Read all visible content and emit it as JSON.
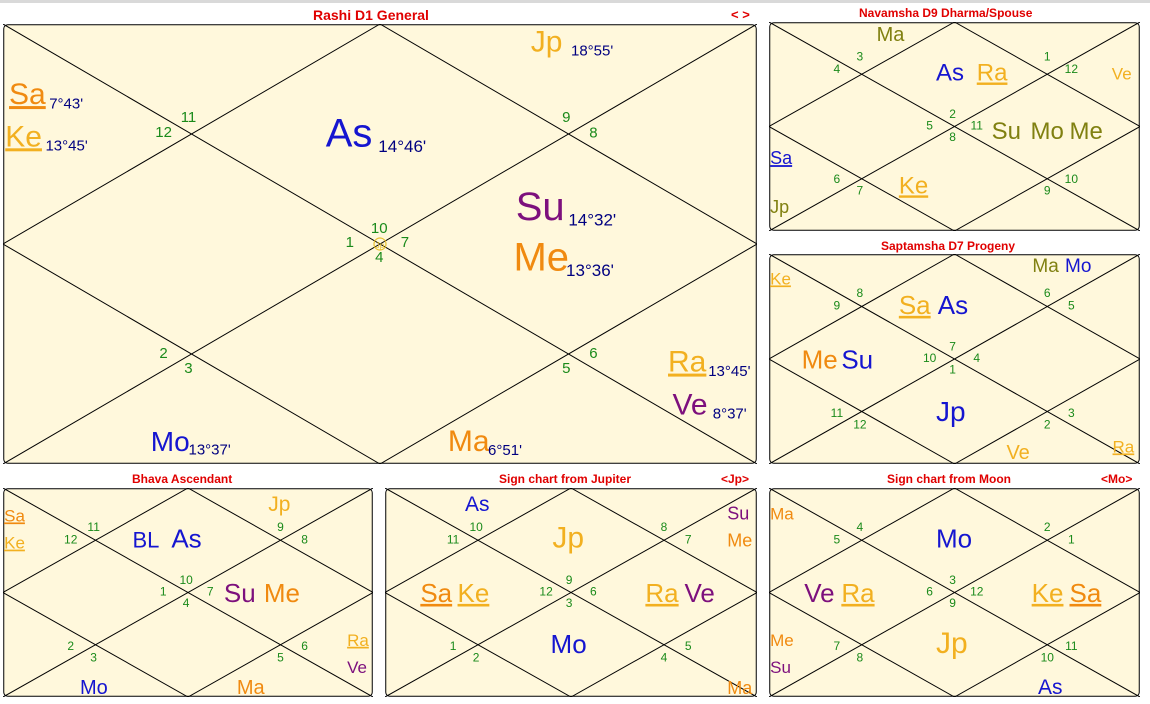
{
  "colors": {
    "background": "#fff8dc",
    "border": "#000000",
    "title": "#e00000",
    "house_number": "#1a8a1a",
    "degree": "#000080",
    "planets": {
      "As": "#1515d0",
      "Su": "#7d107d",
      "Mo": "#1515d0",
      "Ma": "#f08a10",
      "Me": "#f08a10",
      "Jp": "#f2b020",
      "Ve": "#7d107d",
      "Sa": "#f08a10",
      "Ra": "#f2b020",
      "Ke": "#f2b020",
      "BL": "#1515d0",
      "MaN": "#808010",
      "SuN": "#808010",
      "MoN": "#808010",
      "MeN": "#808010",
      "SaB": "#1515d0",
      "JpN": "#808010",
      "KeD": "#f2b020",
      "SaD": "#f2b020",
      "RaD": "#f2b020",
      "VeD": "#f2b020",
      "MeD": "#f08a10",
      "SuD": "#1515d0",
      "MaD": "#808010",
      "MoD": "#1515d0",
      "JpD": "#1515d0",
      "AsD": "#1515d0"
    }
  },
  "charts": [
    {
      "id": "rashi",
      "title": "Rashi D1 General",
      "nav": "< >",
      "houses": [
        {
          "n": "11"
        },
        {
          "n": "12"
        },
        {
          "n": "9"
        },
        {
          "n": "8"
        },
        {
          "n": "10"
        },
        {
          "n": "1"
        },
        {
          "n": "7"
        },
        {
          "n": "4"
        },
        {
          "n": "2"
        },
        {
          "n": "3"
        },
        {
          "n": "6"
        },
        {
          "n": "5"
        }
      ],
      "planets": [
        {
          "label": "Sa",
          "deg": "7°43'",
          "color": "Sa",
          "underline": true
        },
        {
          "label": "Ke",
          "deg": "13°45'",
          "color": "Ke",
          "underline": true
        },
        {
          "label": "As",
          "deg": "14°46'",
          "color": "As"
        },
        {
          "label": "Jp",
          "deg": "18°55'",
          "color": "Jp"
        },
        {
          "label": "Su",
          "deg": "14°32'",
          "color": "Su"
        },
        {
          "label": "Me",
          "deg": "13°36'",
          "color": "Me"
        },
        {
          "label": "Ra",
          "deg": "13°45'",
          "color": "Ra",
          "underline": true
        },
        {
          "label": "Ve",
          "deg": "8°37'",
          "color": "Ve"
        },
        {
          "label": "Mo",
          "deg": "13°37'",
          "color": "Mo"
        },
        {
          "label": "Ma",
          "deg": "6°51'",
          "color": "Ma"
        }
      ]
    },
    {
      "id": "navamsha",
      "title": "Navamsha D9 Dharma/Spouse",
      "nav": "",
      "houses": [
        {
          "n": "3"
        },
        {
          "n": "4"
        },
        {
          "n": "1"
        },
        {
          "n": "12"
        },
        {
          "n": "2"
        },
        {
          "n": "5"
        },
        {
          "n": "11"
        },
        {
          "n": "8"
        },
        {
          "n": "6"
        },
        {
          "n": "7"
        },
        {
          "n": "10"
        },
        {
          "n": "9"
        }
      ],
      "planets": [
        {
          "label": "Ma",
          "color": "MaN"
        },
        {
          "label": "As",
          "color": "As"
        },
        {
          "label": "Ra",
          "color": "Ra",
          "underline": true
        },
        {
          "label": "Ve",
          "color": "Ra"
        },
        {
          "label": "Su",
          "color": "SuN"
        },
        {
          "label": "Mo",
          "color": "MoN"
        },
        {
          "label": "Me",
          "color": "MeN"
        },
        {
          "label": "Sa",
          "color": "SaB",
          "underline": true
        },
        {
          "label": "Jp",
          "color": "JpN"
        },
        {
          "label": "Ke",
          "color": "Ke",
          "underline": true
        }
      ]
    },
    {
      "id": "saptamsha",
      "title": "Saptamsha D7 Progeny",
      "nav": "",
      "houses": [
        {
          "n": "8"
        },
        {
          "n": "9"
        },
        {
          "n": "6"
        },
        {
          "n": "5"
        },
        {
          "n": "7"
        },
        {
          "n": "10"
        },
        {
          "n": "4"
        },
        {
          "n": "1"
        },
        {
          "n": "11"
        },
        {
          "n": "12"
        },
        {
          "n": "3"
        },
        {
          "n": "2"
        }
      ],
      "planets": [
        {
          "label": "Ke",
          "color": "Ke",
          "underline": true
        },
        {
          "label": "Ma",
          "color": "MaN"
        },
        {
          "label": "Mo",
          "color": "Mo"
        },
        {
          "label": "Sa",
          "color": "Ra",
          "underline": true
        },
        {
          "label": "As",
          "color": "As"
        },
        {
          "label": "Me",
          "color": "Me"
        },
        {
          "label": "Su",
          "color": "As"
        },
        {
          "label": "Jp",
          "color": "As"
        },
        {
          "label": "Ve",
          "color": "Jp"
        },
        {
          "label": "Ra",
          "color": "Jp",
          "underline": true
        }
      ]
    },
    {
      "id": "bhava",
      "title": "Bhava Ascendant",
      "nav": "",
      "houses": [
        {
          "n": "11"
        },
        {
          "n": "12"
        },
        {
          "n": "9"
        },
        {
          "n": "8"
        },
        {
          "n": "10"
        },
        {
          "n": "1"
        },
        {
          "n": "7"
        },
        {
          "n": "4"
        },
        {
          "n": "2"
        },
        {
          "n": "3"
        },
        {
          "n": "6"
        },
        {
          "n": "5"
        }
      ],
      "planets": [
        {
          "label": "Sa",
          "color": "Sa",
          "underline": true
        },
        {
          "label": "Ke",
          "color": "Ke",
          "underline": true
        },
        {
          "label": "BL",
          "color": "As"
        },
        {
          "label": "As",
          "color": "As"
        },
        {
          "label": "Jp",
          "color": "Jp"
        },
        {
          "label": "Su",
          "color": "Su"
        },
        {
          "label": "Me",
          "color": "Me"
        },
        {
          "label": "Ra",
          "color": "Ra",
          "underline": true
        },
        {
          "label": "Ve",
          "color": "Ve"
        },
        {
          "label": "Mo",
          "color": "Mo"
        },
        {
          "label": "Ma",
          "color": "Ma"
        }
      ]
    },
    {
      "id": "jupiter",
      "title": "Sign chart from Jupiter",
      "nav": "<Jp>",
      "houses": [
        {
          "n": "10"
        },
        {
          "n": "11"
        },
        {
          "n": "8"
        },
        {
          "n": "7"
        },
        {
          "n": "9"
        },
        {
          "n": "12"
        },
        {
          "n": "6"
        },
        {
          "n": "3"
        },
        {
          "n": "1"
        },
        {
          "n": "2"
        },
        {
          "n": "5"
        },
        {
          "n": "4"
        }
      ],
      "planets": [
        {
          "label": "As",
          "color": "As"
        },
        {
          "label": "Jp",
          "color": "Jp"
        },
        {
          "label": "Su",
          "color": "Su"
        },
        {
          "label": "Me",
          "color": "Me"
        },
        {
          "label": "Sa",
          "color": "Sa",
          "underline": true
        },
        {
          "label": "Ke",
          "color": "Ke",
          "underline": true
        },
        {
          "label": "Ra",
          "color": "Ra",
          "underline": true
        },
        {
          "label": "Ve",
          "color": "Ve"
        },
        {
          "label": "Mo",
          "color": "Mo"
        },
        {
          "label": "Ma",
          "color": "Ma"
        }
      ]
    },
    {
      "id": "moon",
      "title": "Sign chart from Moon",
      "nav": "<Mo>",
      "houses": [
        {
          "n": "4"
        },
        {
          "n": "5"
        },
        {
          "n": "2"
        },
        {
          "n": "1"
        },
        {
          "n": "3"
        },
        {
          "n": "6"
        },
        {
          "n": "12"
        },
        {
          "n": "9"
        },
        {
          "n": "7"
        },
        {
          "n": "8"
        },
        {
          "n": "11"
        },
        {
          "n": "10"
        }
      ],
      "planets": [
        {
          "label": "Ma",
          "color": "Ma"
        },
        {
          "label": "Mo",
          "color": "Mo"
        },
        {
          "label": "Ve",
          "color": "Ve"
        },
        {
          "label": "Ra",
          "color": "Ra",
          "underline": true
        },
        {
          "label": "Ke",
          "color": "Ke",
          "underline": true
        },
        {
          "label": "Sa",
          "color": "Sa",
          "underline": true
        },
        {
          "label": "Me",
          "color": "Me"
        },
        {
          "label": "Su",
          "color": "Su"
        },
        {
          "label": "Jp",
          "color": "Jp"
        },
        {
          "label": "As",
          "color": "As"
        }
      ]
    }
  ]
}
